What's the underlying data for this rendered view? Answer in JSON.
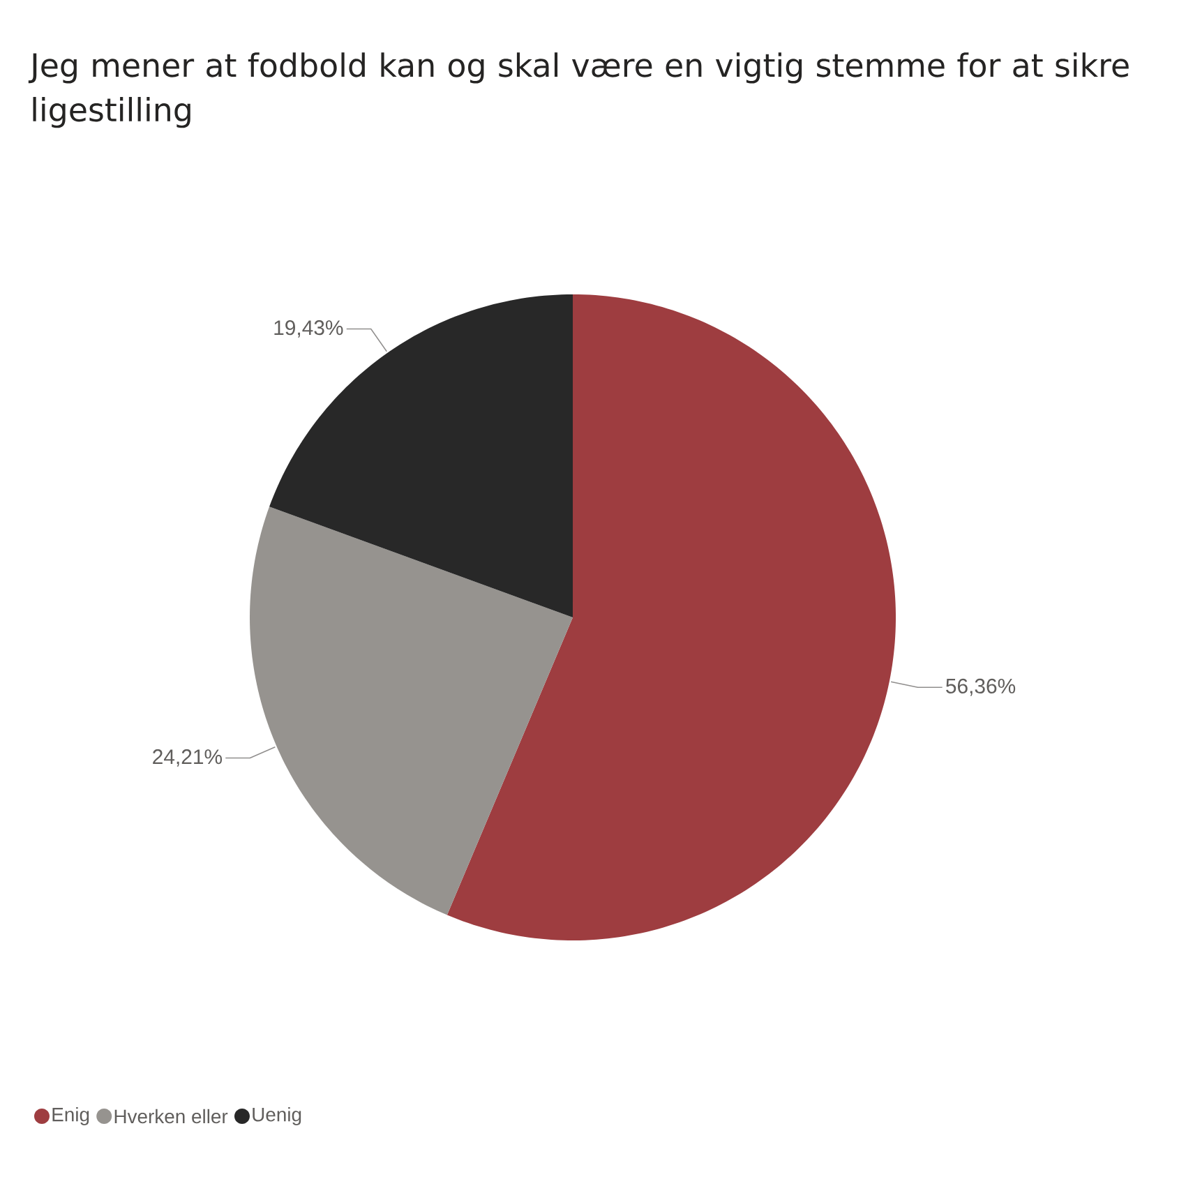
{
  "chart_data": {
    "type": "pie",
    "title": "Jeg mener at fodbold kan og skal være en vigtig stemme for at sikre ligestilling",
    "categories": [
      "Enig",
      "Hverken eller",
      "Uenig"
    ],
    "values": [
      56.36,
      24.21,
      19.43
    ],
    "value_labels": [
      "56,36%",
      "24,21%",
      "19,43%"
    ],
    "colors": [
      "#9e3d40",
      "#96938f",
      "#282828"
    ],
    "legend": "bottom left"
  }
}
